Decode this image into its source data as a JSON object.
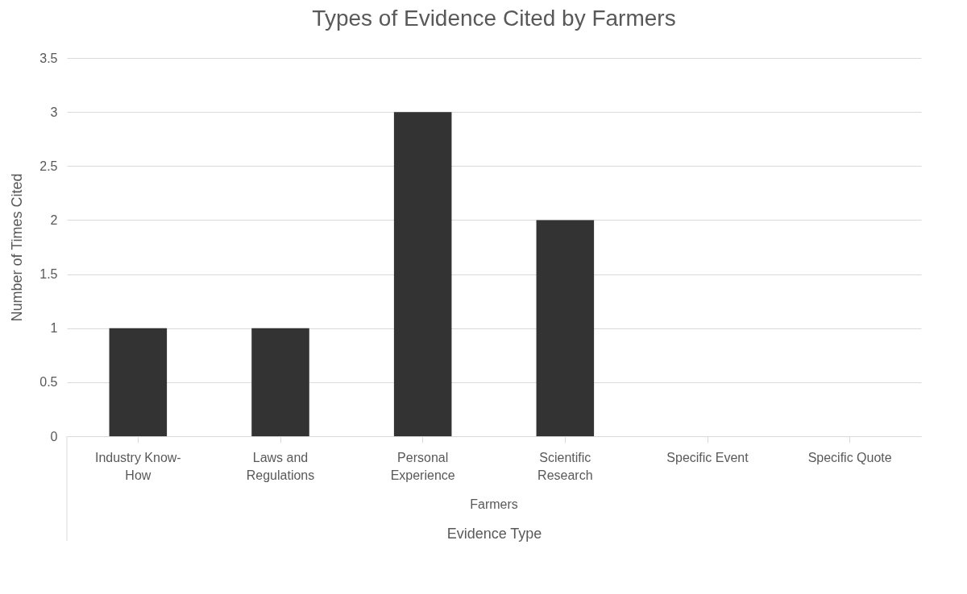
{
  "chart_data": {
    "type": "bar",
    "title": "Types of Evidence Cited by Farmers",
    "xlabel": "Evidence Type",
    "ylabel": "Number of Times Cited",
    "categories": [
      "Industry Know-How",
      "Laws and Regulations",
      "Personal Experience",
      "Scientific Research",
      "Specific Event",
      "Specific Quote"
    ],
    "values": [
      1,
      1,
      3,
      2,
      0,
      0
    ],
    "color": "#333333",
    "ylim": [
      0,
      3.5
    ],
    "yticks": [
      0,
      0.5,
      1,
      1.5,
      2,
      2.5,
      3,
      3.5
    ],
    "grid": "y",
    "annotations": [
      "Farmers"
    ]
  }
}
